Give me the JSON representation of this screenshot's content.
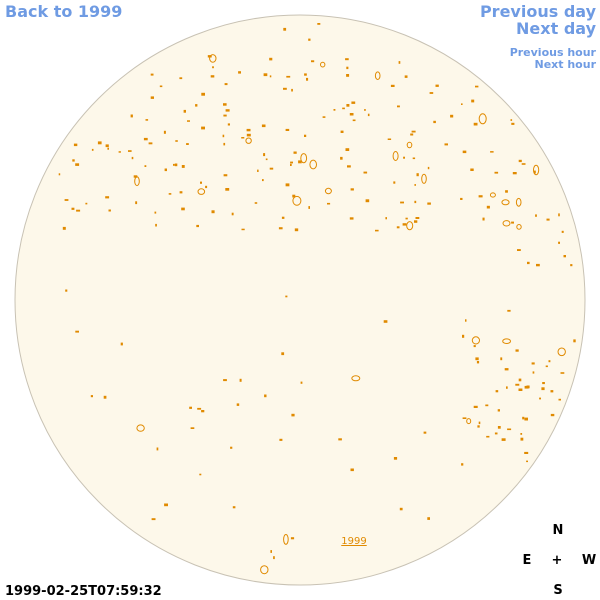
{
  "nav": {
    "back": "Back to 1999",
    "previous_day": "Previous day",
    "next_day": "Next day",
    "previous_hour": "Previous hour",
    "next_hour": "Next hour"
  },
  "disk": {
    "year_link": "1999"
  },
  "timestamp": "1999-02-25T07:59:32",
  "compass": {
    "north": "N",
    "east": "E",
    "center": "+",
    "west": "W",
    "south": "S"
  }
}
